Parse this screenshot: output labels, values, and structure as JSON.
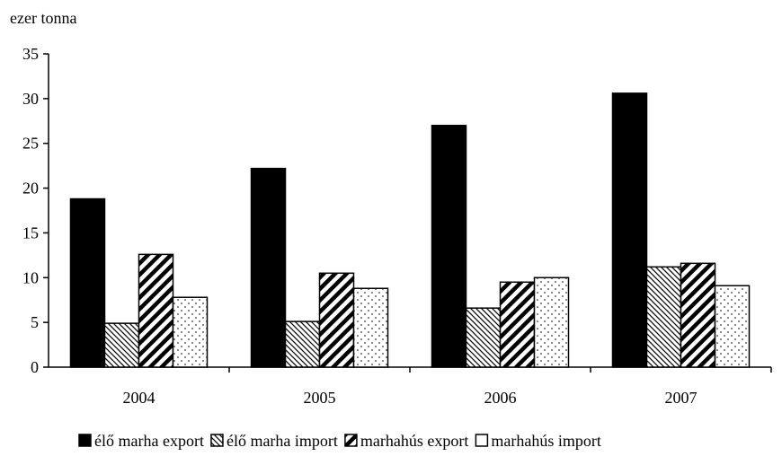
{
  "chart_data": {
    "type": "bar",
    "ylabel": "ezer tonna",
    "categories": [
      "2004",
      "2005",
      "2006",
      "2007"
    ],
    "ylim": [
      0,
      35
    ],
    "yticks": [
      0,
      5,
      10,
      15,
      20,
      25,
      30,
      35
    ],
    "series": [
      {
        "name": "élő marha export",
        "pattern": "solid",
        "values": [
          18.8,
          22.2,
          27.0,
          30.6
        ]
      },
      {
        "name": "élő marha import",
        "pattern": "backslash-hatch",
        "values": [
          4.9,
          5.1,
          6.6,
          11.2
        ]
      },
      {
        "name": "marhahús export",
        "pattern": "diagonal-stripe",
        "values": [
          12.6,
          10.5,
          9.5,
          11.6
        ]
      },
      {
        "name": "marhahús import",
        "pattern": "dots",
        "values": [
          7.8,
          8.8,
          10.0,
          9.1
        ]
      }
    ],
    "legend_position": "bottom",
    "grid": false
  }
}
